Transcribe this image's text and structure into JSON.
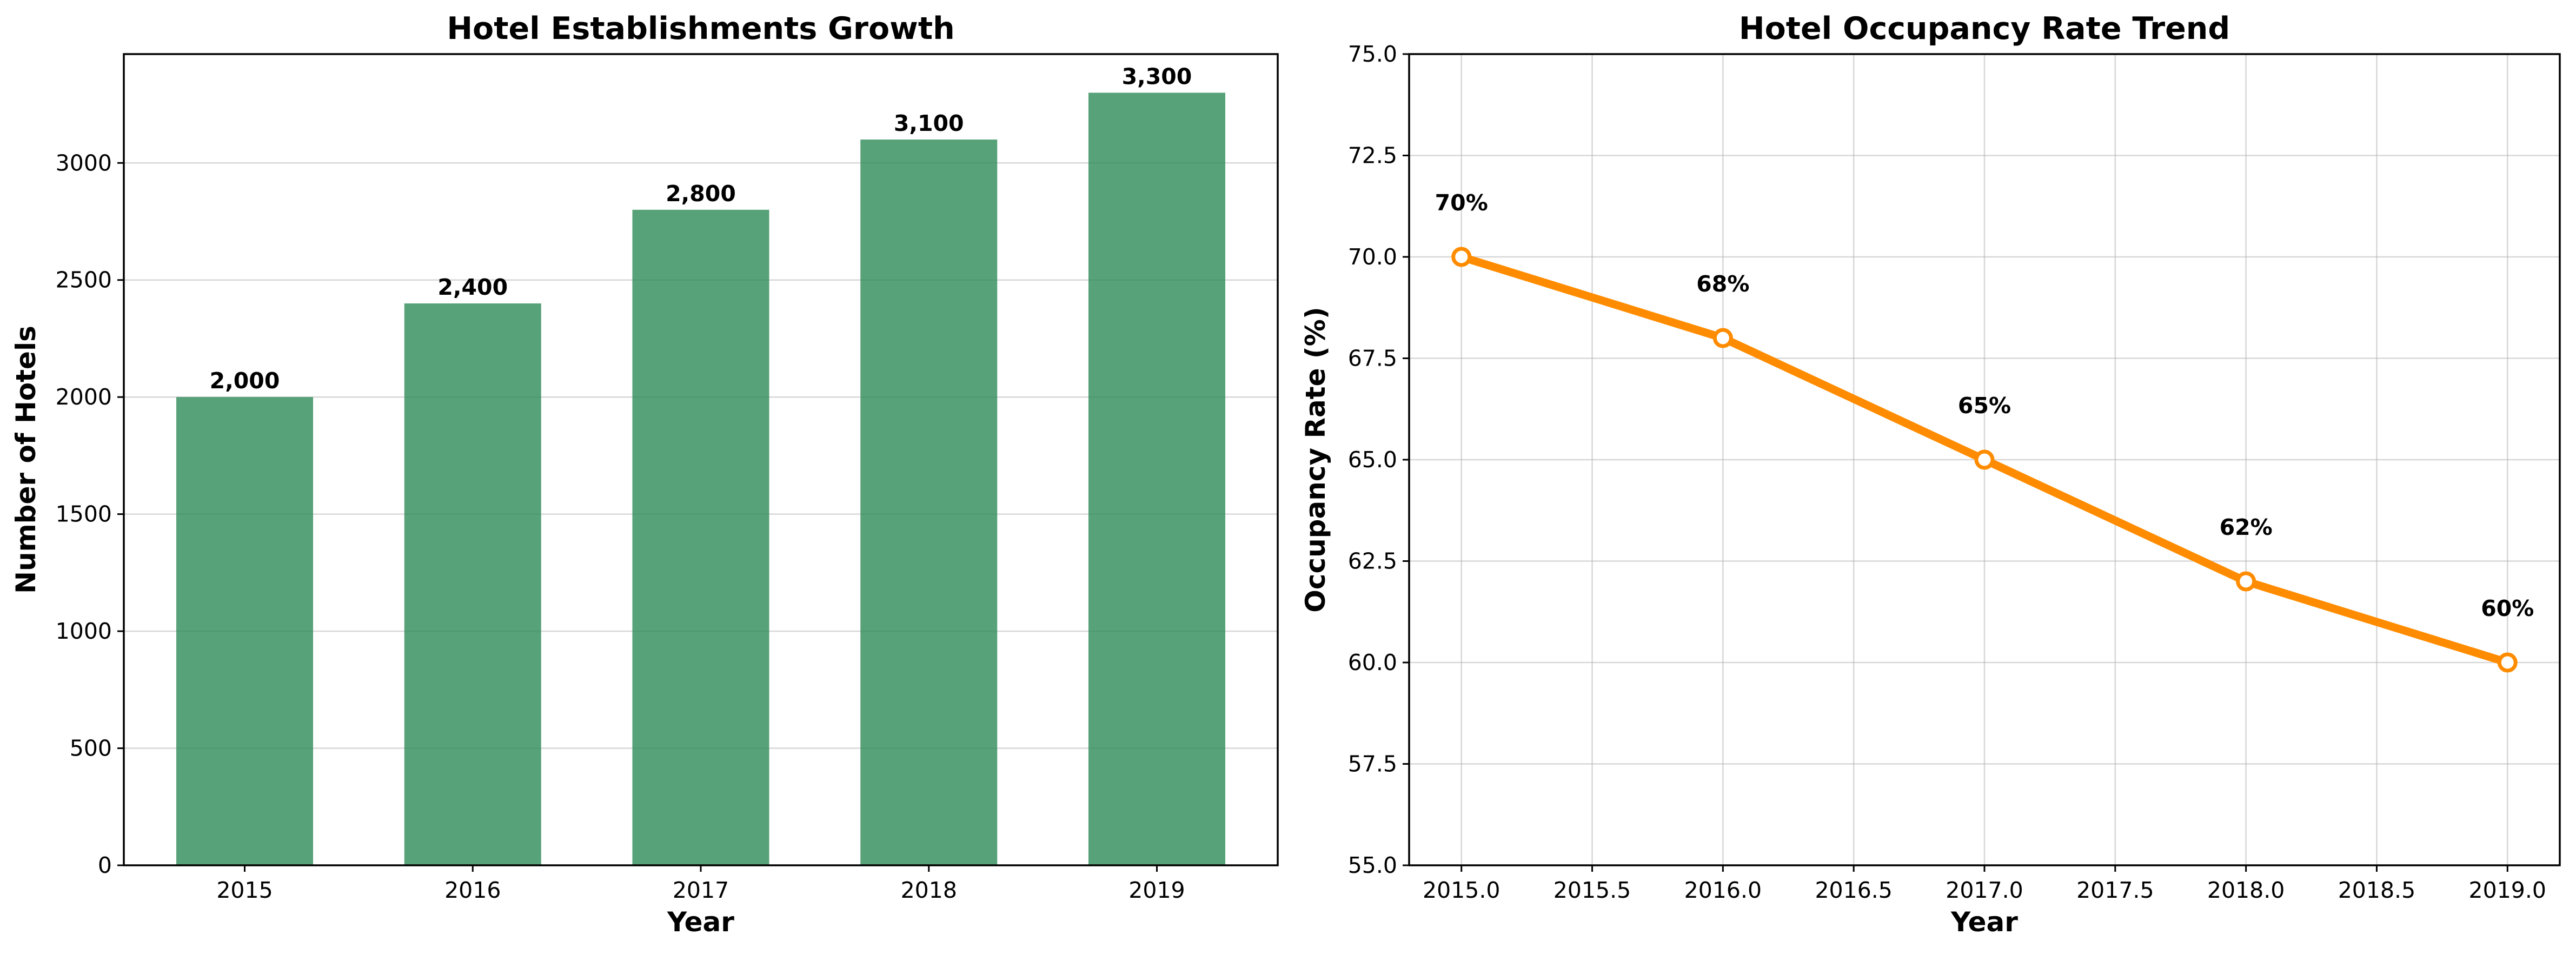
{
  "chart_data": [
    {
      "type": "bar",
      "title": "Hotel Establishments Growth",
      "xlabel": "Year",
      "ylabel": "Number of Hotels",
      "categories": [
        "2015",
        "2016",
        "2017",
        "2018",
        "2019"
      ],
      "values": [
        2000,
        2400,
        2800,
        3100,
        3300
      ],
      "data_labels": [
        "2,000",
        "2,400",
        "2,800",
        "3,100",
        "3,300"
      ],
      "ylim": [
        0,
        3465
      ],
      "yticks": [
        0,
        500,
        1000,
        1500,
        2000,
        2500,
        3000
      ],
      "ytick_labels": [
        "0",
        "500",
        "1000",
        "1500",
        "2000",
        "2500",
        "3000"
      ],
      "grid": "y-axis",
      "color": "#2e8b57"
    },
    {
      "type": "line",
      "title": "Hotel Occupancy Rate Trend",
      "xlabel": "Year",
      "ylabel": "Occupancy Rate (%)",
      "x": [
        2015,
        2016,
        2017,
        2018,
        2019
      ],
      "y": [
        70,
        68,
        65,
        62,
        60
      ],
      "data_labels": [
        "70%",
        "68%",
        "65%",
        "62%",
        "60%"
      ],
      "xlim": [
        2014.8,
        2019.2
      ],
      "ylim": [
        55,
        75
      ],
      "xticks": [
        2015.0,
        2015.5,
        2016.0,
        2016.5,
        2017.0,
        2017.5,
        2018.0,
        2018.5,
        2019.0
      ],
      "xtick_labels": [
        "2015.0",
        "2015.5",
        "2016.0",
        "2016.5",
        "2017.0",
        "2017.5",
        "2018.0",
        "2018.5",
        "2019.0"
      ],
      "yticks": [
        55,
        57.5,
        60,
        62.5,
        65,
        67.5,
        70,
        72.5,
        75
      ],
      "ytick_labels": [
        "55.0",
        "57.5",
        "60.0",
        "62.5",
        "65.0",
        "67.5",
        "70.0",
        "72.5",
        "75.0"
      ],
      "grid": "both",
      "color": "#ff8c00"
    }
  ]
}
